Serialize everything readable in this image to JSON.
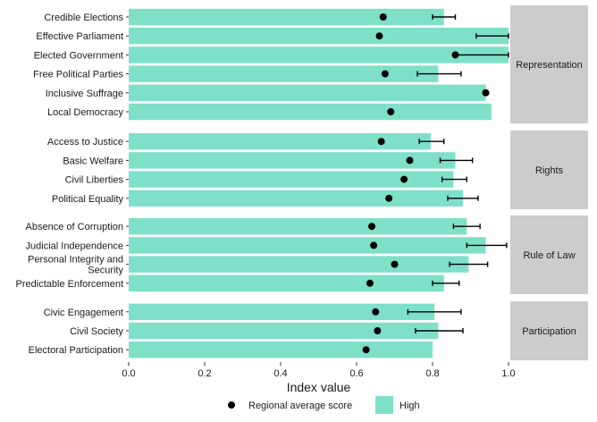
{
  "chart_data": {
    "type": "bar",
    "orientation": "horizontal",
    "xlabel": "Index value",
    "xlim": [
      0,
      1
    ],
    "xticks": [
      "0.0",
      "0.2",
      "0.4",
      "0.6",
      "0.8",
      "1.0"
    ],
    "colors": {
      "bar": "#7fe0c8",
      "point": "#000000",
      "facet_strip": "#cccccc"
    },
    "legend": {
      "position": "bottom",
      "items": [
        {
          "key": "point",
          "label": "Regional average score"
        },
        {
          "key": "bar",
          "label": "High"
        }
      ]
    },
    "facets": [
      {
        "label": "Representation",
        "rows": [
          {
            "category": "Credible Elections",
            "high": 0.83,
            "avg": 0.67,
            "err_low": 0.8,
            "err_high": 0.86
          },
          {
            "category": "Effective Parliament",
            "high": 1.0,
            "avg": 0.66,
            "err_low": 0.915,
            "err_high": 1.0
          },
          {
            "category": "Elected Government",
            "high": 1.0,
            "avg": 0.86,
            "err_low": 0.86,
            "err_high": 1.0
          },
          {
            "category": "Free Political Parties",
            "high": 0.815,
            "avg": 0.675,
            "err_low": 0.76,
            "err_high": 0.875
          },
          {
            "category": "Inclusive Suffrage",
            "high": 0.94,
            "avg": 0.94,
            "err_low": null,
            "err_high": null
          },
          {
            "category": "Local Democracy",
            "high": 0.955,
            "avg": 0.69,
            "err_low": null,
            "err_high": null
          }
        ]
      },
      {
        "label": "Rights",
        "rows": [
          {
            "category": "Access to Justice",
            "high": 0.795,
            "avg": 0.665,
            "err_low": 0.765,
            "err_high": 0.83
          },
          {
            "category": "Basic Welfare",
            "high": 0.86,
            "avg": 0.74,
            "err_low": 0.82,
            "err_high": 0.905
          },
          {
            "category": "Civil Liberties",
            "high": 0.855,
            "avg": 0.725,
            "err_low": 0.825,
            "err_high": 0.89
          },
          {
            "category": "Political Equality",
            "high": 0.88,
            "avg": 0.685,
            "err_low": 0.84,
            "err_high": 0.92
          }
        ]
      },
      {
        "label": "Rule of Law",
        "rows": [
          {
            "category": "Absence of Corruption",
            "high": 0.89,
            "avg": 0.64,
            "err_low": 0.855,
            "err_high": 0.925
          },
          {
            "category": "Judicial Independence",
            "high": 0.94,
            "avg": 0.645,
            "err_low": 0.89,
            "err_high": 0.995
          },
          {
            "category": "Personal Integrity and Security",
            "high": 0.895,
            "avg": 0.7,
            "err_low": 0.845,
            "err_high": 0.945
          },
          {
            "category": "Predictable Enforcement",
            "high": 0.83,
            "avg": 0.635,
            "err_low": 0.8,
            "err_high": 0.87
          }
        ]
      },
      {
        "label": "Participation",
        "rows": [
          {
            "category": "Civic Engagement",
            "high": 0.805,
            "avg": 0.65,
            "err_low": 0.735,
            "err_high": 0.875
          },
          {
            "category": "Civil Society",
            "high": 0.815,
            "avg": 0.655,
            "err_low": 0.755,
            "err_high": 0.88
          },
          {
            "category": "Electoral Participation",
            "high": 0.8,
            "avg": 0.625,
            "err_low": null,
            "err_high": null
          }
        ]
      }
    ]
  }
}
